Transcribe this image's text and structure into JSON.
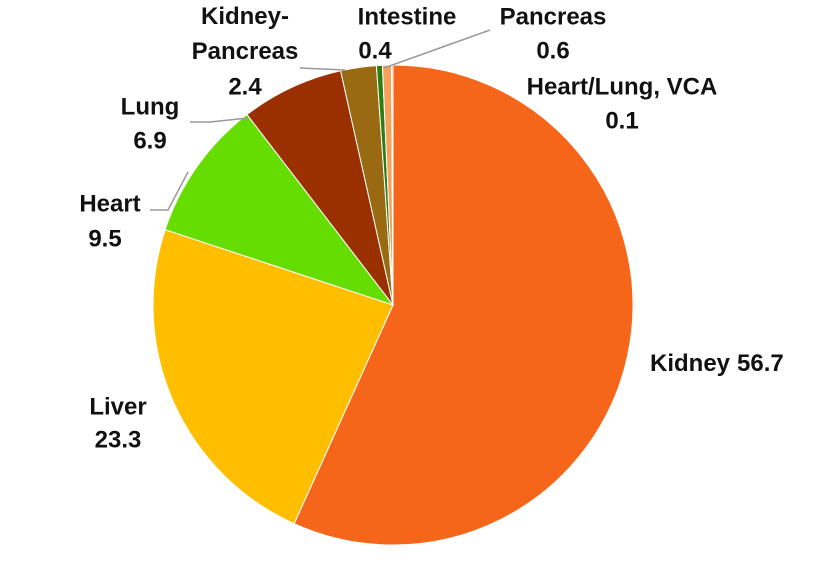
{
  "chart_data": {
    "type": "pie",
    "categories": [
      "Kidney",
      "Liver",
      "Heart",
      "Lung",
      "Kidney-Pancreas",
      "Intestine",
      "Pancreas",
      "Heart/Lung, VCA"
    ],
    "values": [
      56.7,
      23.3,
      9.5,
      6.9,
      2.4,
      0.4,
      0.6,
      0.1
    ],
    "colors": [
      "#f5661a",
      "#ffbe00",
      "#66dd00",
      "#9a3000",
      "#9a6a12",
      "#2e7d14",
      "#f7a05a",
      "#f7c7a0"
    ]
  }
}
